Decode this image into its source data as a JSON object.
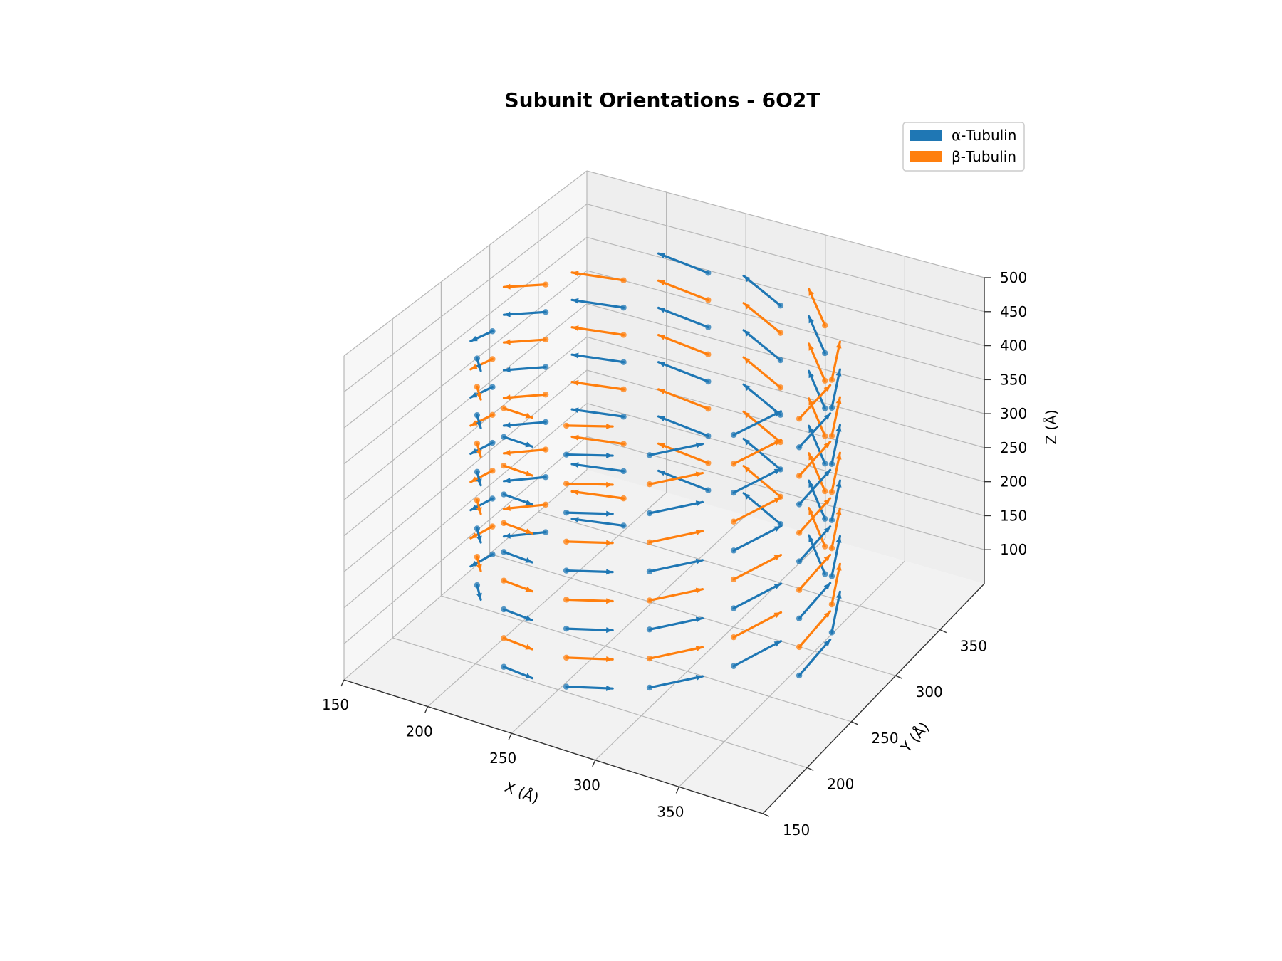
{
  "chart_data": {
    "type": "quiver3d",
    "title": "Subunit Orientations - 6O2T",
    "xlabel": "X (Å)",
    "ylabel": "Y (Å)",
    "zlabel": "Z (Å)",
    "x_ticks": [
      150,
      200,
      250,
      300,
      350
    ],
    "y_ticks": [
      150,
      200,
      250,
      300,
      350
    ],
    "z_ticks": [
      100,
      150,
      200,
      250,
      300,
      350,
      400,
      450,
      500
    ],
    "xlim": [
      150,
      400
    ],
    "ylim": [
      150,
      400
    ],
    "zlim": [
      50,
      500
    ],
    "grid": true,
    "legend_position": "top-right",
    "series": [
      {
        "name": "α-Tubulin",
        "color": "#1f77b4"
      },
      {
        "name": "β-Tubulin",
        "color": "#ff7f0e"
      }
    ]
  }
}
